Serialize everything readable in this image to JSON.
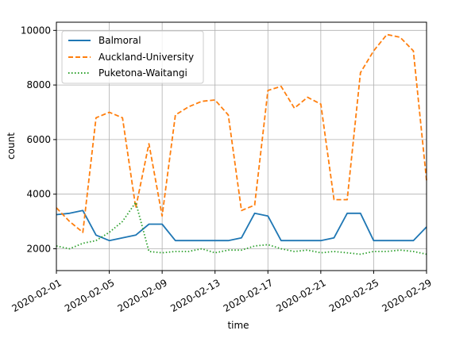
{
  "chart_data": {
    "type": "line",
    "xlabel": "time",
    "ylabel": "count",
    "x_range": [
      "2020-02-01",
      "2020-02-29"
    ],
    "ylim": [
      1200,
      10300
    ],
    "grid": true,
    "legend_position": "top-left",
    "x_ticks": [
      "2020-02-01",
      "2020-02-05",
      "2020-02-09",
      "2020-02-13",
      "2020-02-17",
      "2020-02-21",
      "2020-02-25",
      "2020-02-29"
    ],
    "y_ticks": [
      "2000",
      "4000",
      "6000",
      "8000",
      "10000"
    ],
    "y_tick_values": [
      2000,
      4000,
      6000,
      8000,
      10000
    ],
    "series": [
      {
        "name": "Balmoral",
        "color": "#1f77b4",
        "style": "solid",
        "x": [
          "2020-02-01",
          "2020-02-02",
          "2020-02-03",
          "2020-02-04",
          "2020-02-05",
          "2020-02-06",
          "2020-02-07",
          "2020-02-08",
          "2020-02-09",
          "2020-02-10",
          "2020-02-11",
          "2020-02-12",
          "2020-02-13",
          "2020-02-14",
          "2020-02-15",
          "2020-02-16",
          "2020-02-17",
          "2020-02-18",
          "2020-02-19",
          "2020-02-20",
          "2020-02-21",
          "2020-02-22",
          "2020-02-23",
          "2020-02-24",
          "2020-02-25",
          "2020-02-26",
          "2020-02-27",
          "2020-02-28",
          "2020-02-29"
        ],
        "values": [
          3250,
          3300,
          3400,
          2500,
          2300,
          2400,
          2500,
          2900,
          2900,
          2300,
          2300,
          2300,
          2300,
          2300,
          2400,
          3300,
          3200,
          2300,
          2300,
          2300,
          2300,
          2400,
          3300,
          3300,
          2300,
          2300,
          2300,
          2300,
          2800
        ]
      },
      {
        "name": "Auckland-University",
        "color": "#ff7f0e",
        "style": "dashed",
        "x": [
          "2020-02-01",
          "2020-02-02",
          "2020-02-03",
          "2020-02-04",
          "2020-02-05",
          "2020-02-06",
          "2020-02-07",
          "2020-02-08",
          "2020-02-09",
          "2020-02-10",
          "2020-02-11",
          "2020-02-12",
          "2020-02-13",
          "2020-02-14",
          "2020-02-15",
          "2020-02-16",
          "2020-02-17",
          "2020-02-18",
          "2020-02-19",
          "2020-02-20",
          "2020-02-21",
          "2020-02-22",
          "2020-02-23",
          "2020-02-24",
          "2020-02-25",
          "2020-02-26",
          "2020-02-27",
          "2020-02-28",
          "2020-02-29"
        ],
        "values": [
          3500,
          3000,
          2600,
          6800,
          7000,
          6800,
          3500,
          5850,
          3200,
          6900,
          7200,
          7400,
          7450,
          6900,
          3400,
          3600,
          7800,
          7950,
          7150,
          7550,
          7300,
          3800,
          3800,
          8450,
          9250,
          9850,
          9750,
          9250,
          4500
        ]
      },
      {
        "name": "Puketona-Waitangi",
        "color": "#2ca02c",
        "style": "dotted",
        "x": [
          "2020-02-01",
          "2020-02-02",
          "2020-02-03",
          "2020-02-04",
          "2020-02-05",
          "2020-02-06",
          "2020-02-07",
          "2020-02-08",
          "2020-02-09",
          "2020-02-10",
          "2020-02-11",
          "2020-02-12",
          "2020-02-13",
          "2020-02-14",
          "2020-02-15",
          "2020-02-16",
          "2020-02-17",
          "2020-02-18",
          "2020-02-19",
          "2020-02-20",
          "2020-02-21",
          "2020-02-22",
          "2020-02-23",
          "2020-02-24",
          "2020-02-25",
          "2020-02-26",
          "2020-02-27",
          "2020-02-28",
          "2020-02-29"
        ],
        "values": [
          2100,
          2000,
          2200,
          2300,
          2600,
          3000,
          3700,
          1900,
          1850,
          1900,
          1900,
          2000,
          1850,
          1950,
          1950,
          2100,
          2150,
          2000,
          1900,
          1950,
          1850,
          1900,
          1850,
          1800,
          1900,
          1900,
          1950,
          1900,
          1800
        ]
      }
    ]
  }
}
